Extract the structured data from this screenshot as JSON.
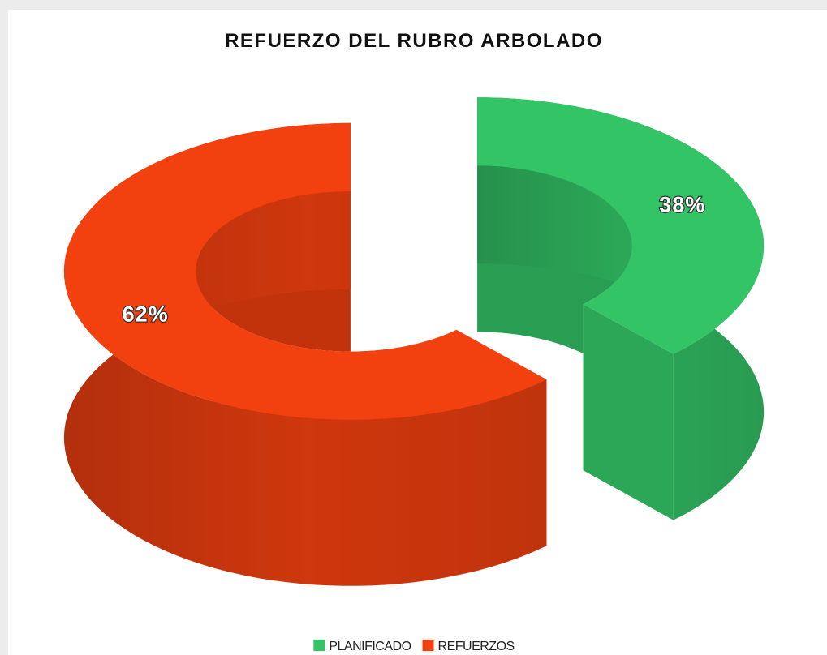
{
  "chart_data": {
    "type": "pie",
    "donut": true,
    "title": "REFUERZO DEL RUBRO ARBOLADO",
    "categories": [
      "PLANIFICADO",
      "REFUERZOS"
    ],
    "values": [
      38,
      62
    ],
    "value_labels": [
      "38%",
      "62%"
    ],
    "colors": [
      "#33c466",
      "#f2400f"
    ],
    "legend": "bottom"
  }
}
